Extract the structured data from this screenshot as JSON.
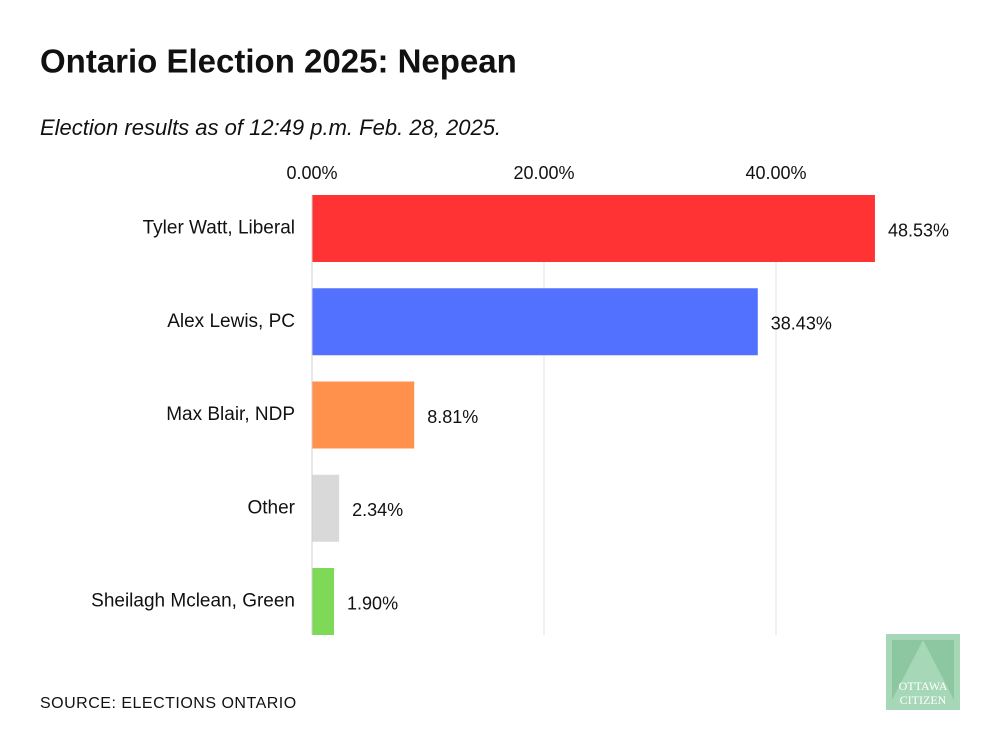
{
  "chart_data": {
    "type": "hbar",
    "title": "Ontario Election 2025: Nepean",
    "subtitle": "Election results as of 12:49 p.m. Feb. 28, 2025.",
    "categories": [
      "Tyler Watt, Liberal",
      "Alex Lewis, PC",
      "Max Blair, NDP",
      "Other",
      "Sheilagh Mclean, Green"
    ],
    "values": [
      48.53,
      38.43,
      8.81,
      2.34,
      1.9
    ],
    "value_labels": [
      "48.53%",
      "38.43%",
      "8.81%",
      "2.34%",
      "1.90%"
    ],
    "colors": [
      "#ff3333",
      "#5271ff",
      "#ff914d",
      "#d9d9d9",
      "#7ed957"
    ],
    "xlim": [
      0,
      50
    ],
    "xticks": [
      {
        "value": 0,
        "label": "0.00%"
      },
      {
        "value": 20,
        "label": "20.00%"
      },
      {
        "value": 40,
        "label": "40.00%"
      }
    ],
    "grid": true,
    "source": "SOURCE: ELECTIONS ONTARIO",
    "logo": [
      "OTTAWA",
      "CITIZEN"
    ]
  }
}
